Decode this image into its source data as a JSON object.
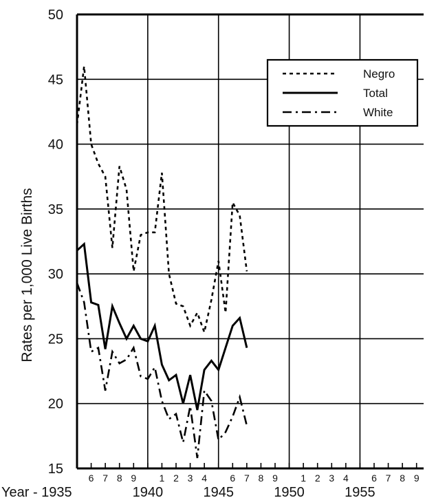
{
  "chart_data": {
    "type": "line",
    "title": "",
    "xlabel": "",
    "ylabel": "Rates per 1,000 Live Births",
    "ylim": [
      15,
      50
    ],
    "yticks": [
      "15",
      "20",
      "25",
      "30",
      "35",
      "40",
      "45",
      "50"
    ],
    "x_tick_labels": [
      {
        "x": 1935,
        "text": "Year - 1935",
        "row": "major"
      },
      {
        "x": 1936,
        "text": "6",
        "row": "minor"
      },
      {
        "x": 1937,
        "text": "7",
        "row": "minor"
      },
      {
        "x": 1938,
        "text": "8",
        "row": "minor"
      },
      {
        "x": 1939,
        "text": "9",
        "row": "minor"
      },
      {
        "x": 1940,
        "text": "1940",
        "row": "major"
      },
      {
        "x": 1941,
        "text": "1",
        "row": "minor"
      },
      {
        "x": 1942,
        "text": "2",
        "row": "minor"
      },
      {
        "x": 1943,
        "text": "3",
        "row": "minor"
      },
      {
        "x": 1944,
        "text": "4",
        "row": "minor"
      },
      {
        "x": 1945,
        "text": "1945",
        "row": "major"
      },
      {
        "x": 1946,
        "text": "6",
        "row": "minor"
      },
      {
        "x": 1947,
        "text": "7",
        "row": "minor"
      },
      {
        "x": 1948,
        "text": "8",
        "row": "minor"
      },
      {
        "x": 1949,
        "text": "9",
        "row": "minor"
      },
      {
        "x": 1950,
        "text": "1950",
        "row": "major"
      },
      {
        "x": 1951,
        "text": "1",
        "row": "minor"
      },
      {
        "x": 1952,
        "text": "2",
        "row": "minor"
      },
      {
        "x": 1953,
        "text": "3",
        "row": "minor"
      },
      {
        "x": 1954,
        "text": "4",
        "row": "minor"
      },
      {
        "x": 1955,
        "text": "1955",
        "row": "major"
      },
      {
        "x": 1956,
        "text": "6",
        "row": "minor"
      },
      {
        "x": 1957,
        "text": "7",
        "row": "minor"
      },
      {
        "x": 1958,
        "text": "8",
        "row": "minor"
      },
      {
        "x": 1959,
        "text": "9",
        "row": "minor"
      }
    ],
    "xlim": [
      1935,
      1959.5
    ],
    "grid": true,
    "legend_position": "top-right",
    "series": [
      {
        "name": "Negro",
        "style": "dotted",
        "points": [
          [
            1935,
            41.5
          ],
          [
            1935.5,
            46.0
          ],
          [
            1936,
            40.0
          ],
          [
            1936.5,
            38.5
          ],
          [
            1937,
            37.5
          ],
          [
            1937.5,
            32.0
          ],
          [
            1938,
            38.3
          ],
          [
            1938.5,
            36.5
          ],
          [
            1939,
            30.2
          ],
          [
            1939.5,
            33.0
          ],
          [
            1940,
            33.2
          ],
          [
            1940.5,
            33.2
          ],
          [
            1941,
            37.8
          ],
          [
            1941.5,
            30.0
          ],
          [
            1942,
            27.7
          ],
          [
            1942.5,
            27.5
          ],
          [
            1943,
            26.0
          ],
          [
            1943.5,
            27.0
          ],
          [
            1944,
            25.5
          ],
          [
            1944.5,
            28.0
          ],
          [
            1945,
            31.0
          ],
          [
            1945.5,
            27.0
          ],
          [
            1946,
            35.5
          ],
          [
            1946.5,
            34.5
          ],
          [
            1947,
            30.2
          ]
        ]
      },
      {
        "name": "Total",
        "style": "solid",
        "points": [
          [
            1935,
            31.8
          ],
          [
            1935.5,
            32.3
          ],
          [
            1936,
            27.8
          ],
          [
            1936.5,
            27.6
          ],
          [
            1937,
            24.2
          ],
          [
            1937.5,
            27.5
          ],
          [
            1938,
            26.2
          ],
          [
            1938.5,
            25.0
          ],
          [
            1939,
            26.0
          ],
          [
            1939.5,
            25.0
          ],
          [
            1940,
            24.8
          ],
          [
            1940.5,
            26.0
          ],
          [
            1941,
            23.0
          ],
          [
            1941.5,
            21.8
          ],
          [
            1942,
            22.2
          ],
          [
            1942.5,
            20.0
          ],
          [
            1943,
            22.2
          ],
          [
            1943.5,
            19.5
          ],
          [
            1944,
            22.6
          ],
          [
            1944.5,
            23.3
          ],
          [
            1945,
            22.6
          ],
          [
            1945.5,
            24.3
          ],
          [
            1946,
            26.0
          ],
          [
            1946.5,
            26.6
          ],
          [
            1947,
            24.3
          ]
        ]
      },
      {
        "name": "White",
        "style": "dash-dot",
        "points": [
          [
            1935,
            29.3
          ],
          [
            1935.5,
            27.8
          ],
          [
            1936,
            24.0
          ],
          [
            1936.5,
            24.3
          ],
          [
            1937,
            21.0
          ],
          [
            1937.5,
            24.0
          ],
          [
            1938,
            23.1
          ],
          [
            1938.5,
            23.4
          ],
          [
            1939,
            24.3
          ],
          [
            1939.5,
            22.1
          ],
          [
            1940,
            21.9
          ],
          [
            1940.5,
            22.8
          ],
          [
            1941,
            20.2
          ],
          [
            1941.5,
            18.8
          ],
          [
            1942,
            19.2
          ],
          [
            1942.5,
            17.0
          ],
          [
            1943,
            19.8
          ],
          [
            1943.5,
            15.8
          ],
          [
            1944,
            21.0
          ],
          [
            1944.5,
            20.2
          ],
          [
            1945,
            17.2
          ],
          [
            1945.5,
            17.8
          ],
          [
            1946,
            19.0
          ],
          [
            1946.5,
            20.5
          ],
          [
            1947,
            18.3
          ]
        ]
      }
    ]
  }
}
